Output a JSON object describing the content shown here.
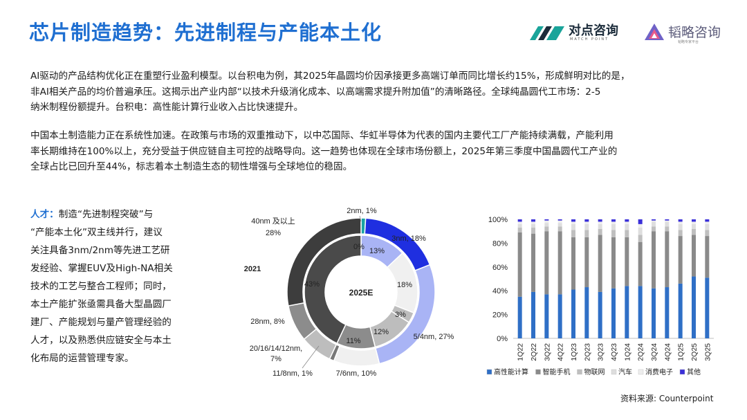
{
  "header": {
    "title": "芯片制造趋势：先进制程与产能本土化",
    "logo_left": {
      "name": "对点咨询",
      "sub": "MATCH POINT"
    },
    "logo_right": {
      "name": "韬略咨询",
      "sub": "韬略专家平台"
    }
  },
  "body": {
    "para1_lines": [
      "AI驱动的产品结构优化正在重塑行业盈利模型。以台积电为例，其2025年晶圆均价因承接更多高端订单而同比增长约15%，形成鲜明对比的是，",
      "非AI相关产品的均价普遍承压。这揭示出产业内部“以技术升级消化成本、以高端需求提升附加值”的清晰路径。全球纯晶圆代工市场：2-5",
      "纳米制程份额提升。台积电：高性能计算行业收入占比快速提升。"
    ],
    "para2_lines": [
      "中国本土制造能力正在系统性加速。在政策与市场的双重推动下，以中芯国际、华虹半导体为代表的国内主要代工厂产能持续满载，产能利用",
      "率长期维持在100%以上，充分受益于供应链自主可控的战略导向。这一趋势也体现在全球市场份额上，2025年第三季度中国晶圆代工产业的",
      "全球占比已回升至44%，标志着本土制造生态的韧性增强与全球地位的稳固。"
    ],
    "talent_label": "人才：",
    "talent_lines": [
      "制造“先进制程突破”与",
      "“产能本土化”双主线并行，建议",
      "关注具备3nm/2nm等先进工艺研",
      "发经验、掌握EUV及High-NA相关",
      "技术的工艺与整合工程师；同时，",
      "本土产能扩张亟需具备大型晶圆厂",
      "建厂、产能规划与量产管理经验的",
      "人才，以及熟悉供应链安全与本土",
      "化布局的运营管理专家。"
    ]
  },
  "source": "资料来源: Counterpoint",
  "chart_data": [
    {
      "type": "pie",
      "variant": "nested-donut",
      "center_label": "2025E",
      "outer_ring_label": "2021",
      "outer": {
        "categories": [
          "2nm",
          "3nm",
          "5/4nm",
          "7/6nm",
          "11/8nm",
          "20/16/14/12nm",
          "28nm",
          "40nm 及以上"
        ],
        "values": [
          1,
          18,
          27,
          10,
          1,
          7,
          8,
          28
        ],
        "labels": [
          "2nm, 1%",
          "3nm, 18%",
          "5/4nm, 27%",
          "7/6nm, 10%",
          "11/8nm, 1%",
          "20/16/14/12nm, 7%",
          "28nm, 8%",
          "40nm 及以上 28%"
        ],
        "colors": [
          "#1aa4a4",
          "#1f2fe0",
          "#a9b4f5",
          "#f0f0f0",
          "#777777",
          "#bdbdbd",
          "#8c8c8c",
          "#3d3d3d"
        ]
      },
      "inner": {
        "values": [
          0,
          13,
          18,
          3,
          12,
          11,
          43
        ],
        "labels": [
          "0%",
          "13%",
          "18%",
          "3%",
          "12%",
          "11%",
          "43%"
        ],
        "colors": [
          "#1aa4a4",
          "#a9b4f5",
          "#f0f0f0",
          "#bdbdbd",
          "#bdbdbd",
          "#8c8c8c",
          "#4a4a4a"
        ]
      }
    },
    {
      "type": "bar",
      "stacked": true,
      "categories": [
        "1Q22",
        "2Q22",
        "3Q22",
        "4Q22",
        "1Q23",
        "2Q23",
        "3Q23",
        "4Q23",
        "1Q24",
        "2Q24",
        "3Q24",
        "4Q24",
        "1Q25",
        "2Q25",
        "3Q25"
      ],
      "ylim": [
        0,
        100
      ],
      "yticks": [
        "0%",
        "20%",
        "40%",
        "60%",
        "80%",
        "100%"
      ],
      "legend_position": "bottom",
      "series": [
        {
          "name": "高性能计算",
          "color": "#2f6fc6",
          "values": [
            35,
            39,
            37,
            37,
            41,
            43,
            39,
            42,
            44,
            44,
            42,
            43,
            46,
            52,
            51
          ]
        },
        {
          "name": "智能手机",
          "color": "#8a8a8a",
          "values": [
            54,
            49,
            53,
            53,
            44,
            42,
            48,
            43,
            41,
            37,
            48,
            47,
            40,
            35,
            35
          ]
        },
        {
          "name": "物联网",
          "color": "#bfbfbf",
          "values": [
            4,
            5,
            4,
            4,
            6,
            6,
            5,
            6,
            6,
            6,
            4,
            4,
            5,
            5,
            5
          ]
        },
        {
          "name": "汽车",
          "color": "#dedede",
          "values": [
            3,
            3,
            3,
            3,
            5,
            5,
            4,
            5,
            5,
            6,
            4,
            4,
            5,
            4,
            5
          ]
        },
        {
          "name": "消费电子",
          "color": "#eeeeee",
          "values": [
            2,
            2,
            2,
            2,
            2,
            2,
            2,
            2,
            2,
            3,
            1,
            1,
            2,
            2,
            2
          ]
        },
        {
          "name": "其他",
          "color": "#3a2fd8",
          "values": [
            2,
            2,
            1,
            1,
            2,
            2,
            2,
            2,
            2,
            4,
            1,
            1,
            2,
            2,
            2
          ]
        }
      ]
    }
  ]
}
